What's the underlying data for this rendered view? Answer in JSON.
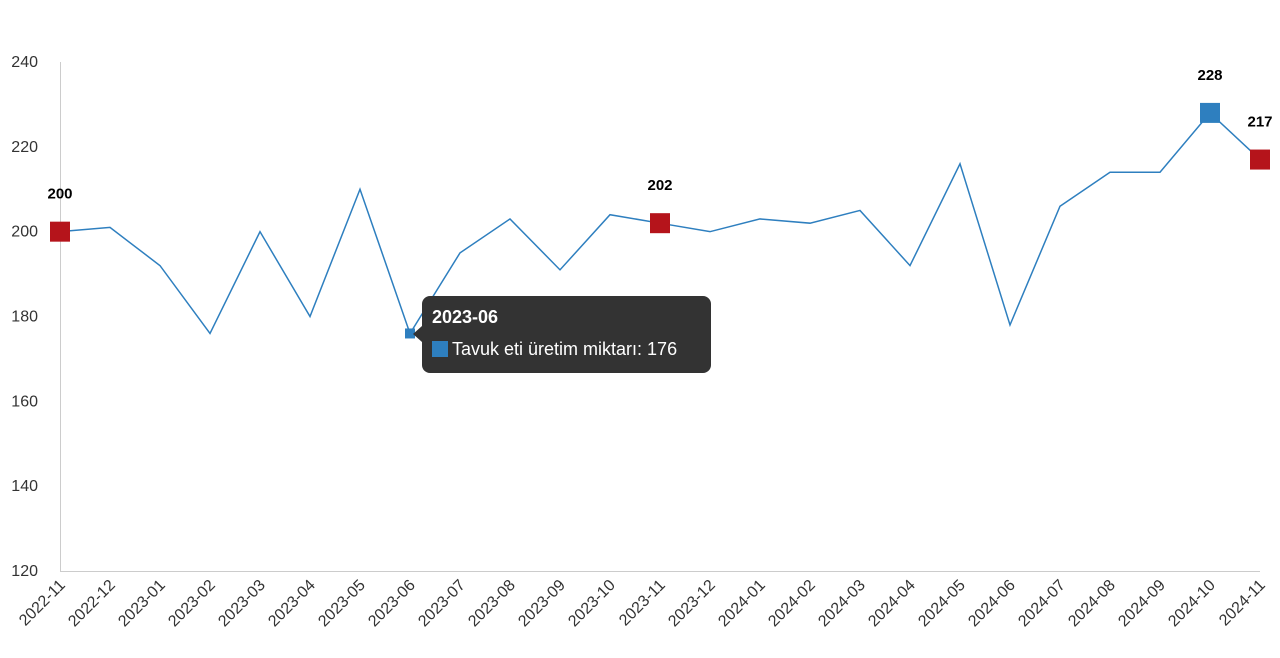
{
  "chart_data": {
    "type": "line",
    "categories": [
      "2022-11",
      "2022-12",
      "2023-01",
      "2023-02",
      "2023-03",
      "2023-04",
      "2023-05",
      "2023-06",
      "2023-07",
      "2023-08",
      "2023-09",
      "2023-10",
      "2023-11",
      "2023-12",
      "2024-01",
      "2024-02",
      "2024-03",
      "2024-04",
      "2024-05",
      "2024-06",
      "2024-07",
      "2024-08",
      "2024-09",
      "2024-10",
      "2024-11"
    ],
    "series": [
      {
        "name": "Tavuk eti üretim miktarı",
        "color": "#2e7fbf",
        "values": [
          200,
          201,
          192,
          176,
          200,
          180,
          210,
          176,
          195,
          203,
          191,
          204,
          202,
          200,
          203,
          202,
          205,
          192,
          216,
          178,
          206,
          214,
          214,
          228,
          217
        ]
      }
    ],
    "ylim": [
      120,
      240
    ],
    "yticks": [
      120,
      140,
      160,
      180,
      200,
      220,
      240
    ],
    "grid": false,
    "highlighted_points": [
      {
        "category": "2022-11",
        "value": 200,
        "label": "200",
        "color": "#b5141b"
      },
      {
        "category": "2023-11",
        "value": 202,
        "label": "202",
        "color": "#b5141b"
      },
      {
        "category": "2024-10",
        "value": 228,
        "label": "228",
        "color": "#2e7fbf"
      },
      {
        "category": "2024-11",
        "value": 217,
        "label": "217",
        "color": "#b5141b"
      }
    ],
    "tooltip": {
      "category": "2023-06",
      "series_name": "Tavuk eti üretim miktarı",
      "value": "176",
      "text": "Tavuk eti üretim miktarı: 176",
      "background": "#333333"
    }
  }
}
